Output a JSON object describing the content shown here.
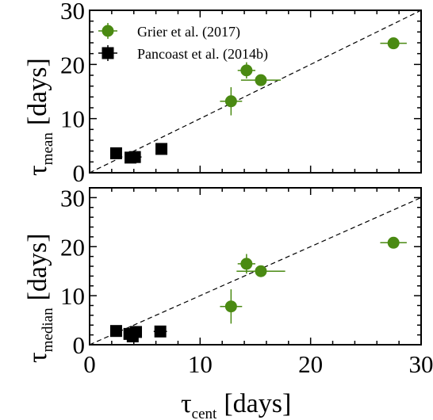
{
  "chart_data": [
    {
      "type": "scatter",
      "panel": "top",
      "ylabel_symbol": "τ",
      "ylabel_sub": "mean",
      "ylabel_unit": "[days]",
      "xlim": [
        0,
        30
      ],
      "ylim": [
        0,
        30
      ],
      "yticks": [
        0,
        10,
        20,
        30
      ],
      "one_to_one_line": true,
      "legend": {
        "position": "top-left",
        "show": true
      },
      "series": [
        {
          "name": "Grier et al. (2017)",
          "color": "#4a8a12",
          "marker": "circle",
          "points": [
            {
              "x": 12.8,
              "y": 13.2,
              "xerr": 1.0,
              "yerr": 2.6
            },
            {
              "x": 14.2,
              "y": 18.9,
              "xerr": 0.8,
              "yerr": 1.5
            },
            {
              "x": 15.5,
              "y": 17.1,
              "xerr": 1.8,
              "yerr": 1.0
            },
            {
              "x": 27.5,
              "y": 23.9,
              "xerr": 1.2,
              "yerr": 0.8
            }
          ]
        },
        {
          "name": "Pancoast et al. (2014b)",
          "color": "#000000",
          "marker": "square",
          "points": [
            {
              "x": 2.4,
              "y": 3.6,
              "xerr": 0.4,
              "yerr": 0.5
            },
            {
              "x": 3.7,
              "y": 2.8,
              "xerr": 0.5,
              "yerr": 0.6
            },
            {
              "x": 4.1,
              "y": 2.9,
              "xerr": 0.6,
              "yerr": 0.7
            },
            {
              "x": 6.5,
              "y": 4.4,
              "xerr": 0.5,
              "yerr": 0.6
            }
          ]
        }
      ]
    },
    {
      "type": "scatter",
      "panel": "bottom",
      "ylabel_symbol": "τ",
      "ylabel_sub": "median",
      "ylabel_unit": "[days]",
      "xlabel_symbol": "τ",
      "xlabel_sub": "cent",
      "xlabel_unit": "[days]",
      "xlim": [
        0,
        30
      ],
      "ylim": [
        0,
        32
      ],
      "xticks": [
        0,
        10,
        20,
        30
      ],
      "yticks": [
        0,
        10,
        20,
        30
      ],
      "one_to_one_line": true,
      "series": [
        {
          "name": "Grier et al. (2017)",
          "color": "#4a8a12",
          "marker": "circle",
          "points": [
            {
              "x": 12.8,
              "y": 7.8,
              "xerr": 1.0,
              "yerr": 3.5
            },
            {
              "x": 14.2,
              "y": 16.5,
              "xerr": 0.8,
              "yerr": 2.0
            },
            {
              "x": 15.5,
              "y": 15.0,
              "xerr": 2.2,
              "yerr": 1.0
            },
            {
              "x": 27.5,
              "y": 20.8,
              "xerr": 1.2,
              "yerr": 0.6
            }
          ]
        },
        {
          "name": "Pancoast et al. (2014b)",
          "color": "#000000",
          "marker": "square",
          "points": [
            {
              "x": 2.4,
              "y": 2.8,
              "xerr": 0.4,
              "yerr": 0.7
            },
            {
              "x": 3.6,
              "y": 2.2,
              "xerr": 0.5,
              "yerr": 0.7
            },
            {
              "x": 3.9,
              "y": 1.7,
              "xerr": 0.5,
              "yerr": 1.2
            },
            {
              "x": 4.2,
              "y": 2.6,
              "xerr": 0.5,
              "yerr": 1.0
            },
            {
              "x": 6.4,
              "y": 2.7,
              "xerr": 0.6,
              "yerr": 0.6
            }
          ]
        }
      ]
    }
  ]
}
